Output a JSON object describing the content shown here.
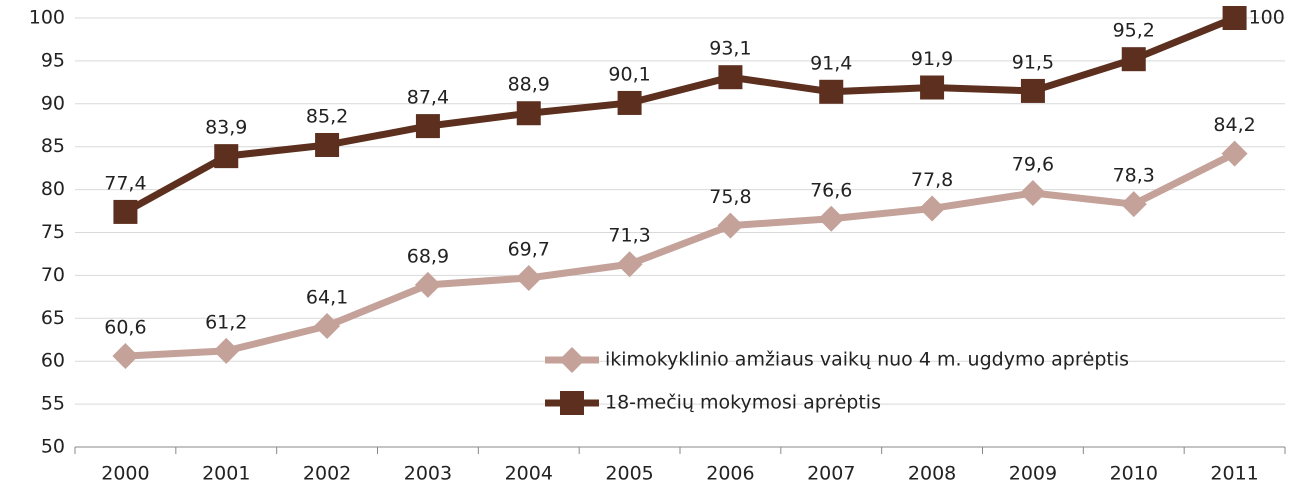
{
  "chart_data": {
    "type": "line",
    "categories": [
      "2000",
      "2001",
      "2002",
      "2003",
      "2004",
      "2005",
      "2006",
      "2007",
      "2008",
      "2009",
      "2010",
      "2011"
    ],
    "series": [
      {
        "name": "ikimokyklinio amžiaus vaikų nuo 4 m. ugdymo aprėptis",
        "color": "#c4a29a",
        "marker": "diamond",
        "values": [
          60.6,
          61.2,
          64.1,
          68.9,
          69.7,
          71.3,
          75.8,
          76.6,
          77.8,
          79.6,
          78.3,
          84.2
        ],
        "value_labels": [
          "60,6",
          "61,2",
          "64,1",
          "68,9",
          "69,7",
          "71,3",
          "75,8",
          "76,6",
          "77,8",
          "79,6",
          "78,3",
          "84,2"
        ]
      },
      {
        "name": "18-mečių mokymosi aprėptis",
        "color": "#5c2f1f",
        "marker": "square",
        "values": [
          77.4,
          83.9,
          85.2,
          87.4,
          88.9,
          90.1,
          93.1,
          91.4,
          91.9,
          91.5,
          95.2,
          100
        ],
        "value_labels": [
          "77,4",
          "83,9",
          "85,2",
          "87,4",
          "88,9",
          "90,1",
          "93,1",
          "91,4",
          "91,9",
          "91,5",
          "95,2",
          "100"
        ]
      }
    ],
    "ylim": [
      50,
      100
    ],
    "yticks": [
      50,
      55,
      60,
      65,
      70,
      75,
      80,
      85,
      90,
      95,
      100
    ],
    "grid": true,
    "legend": "lower right"
  }
}
